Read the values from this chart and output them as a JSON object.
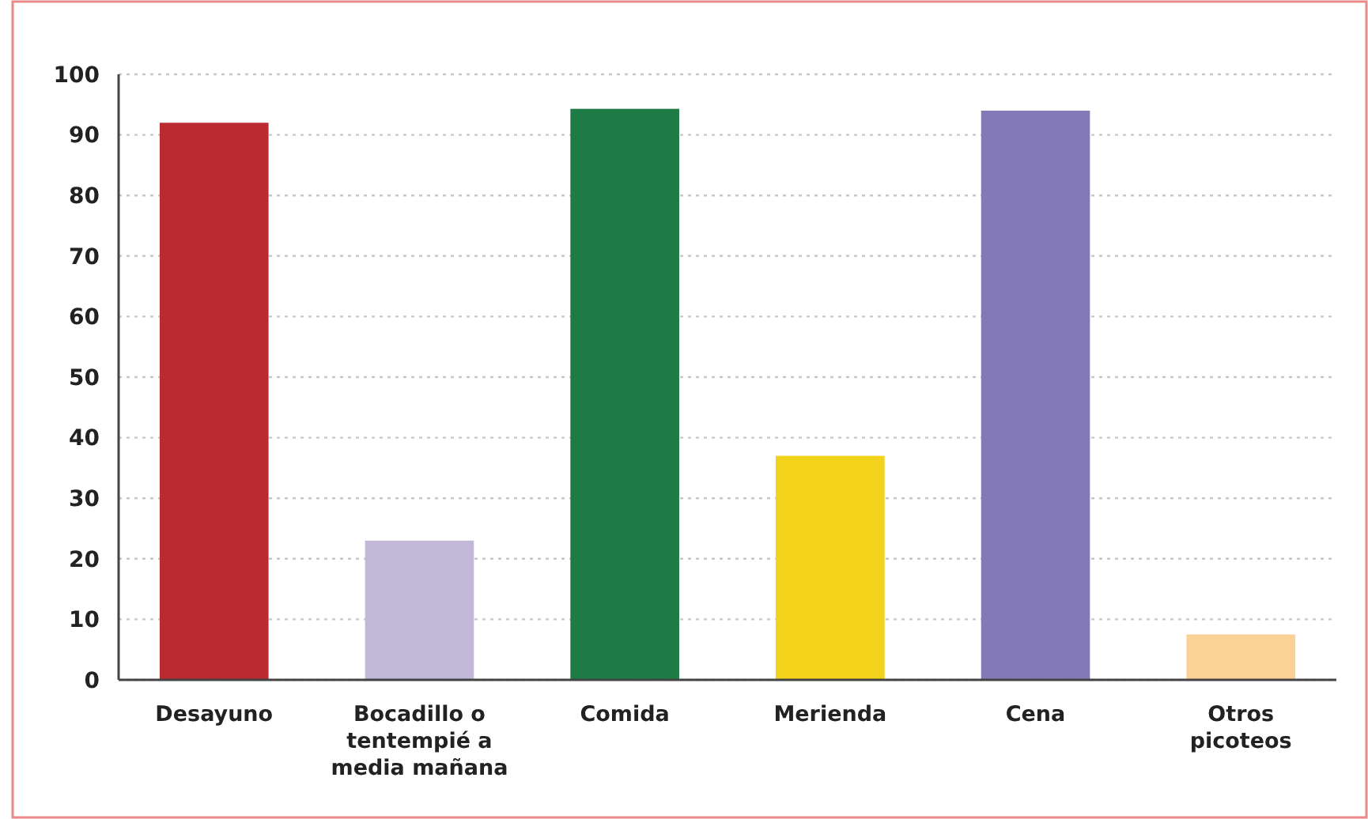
{
  "chart_data": {
    "type": "bar",
    "categories": [
      "Desayuno",
      "Bocadillo o tentempié a media mañana",
      "Comida",
      "Merienda",
      "Cena",
      "Otros picoteos"
    ],
    "values": [
      92,
      23,
      94.3,
      37,
      94,
      7.5
    ],
    "colors": [
      "#bb2a30",
      "#c2b9d8",
      "#1f7b45",
      "#f3d21b",
      "#8379b6",
      "#fad196"
    ],
    "ylim": [
      0,
      100
    ],
    "yticks": [
      0,
      10,
      20,
      30,
      40,
      50,
      60,
      70,
      80,
      90,
      100
    ],
    "grid": "y"
  }
}
